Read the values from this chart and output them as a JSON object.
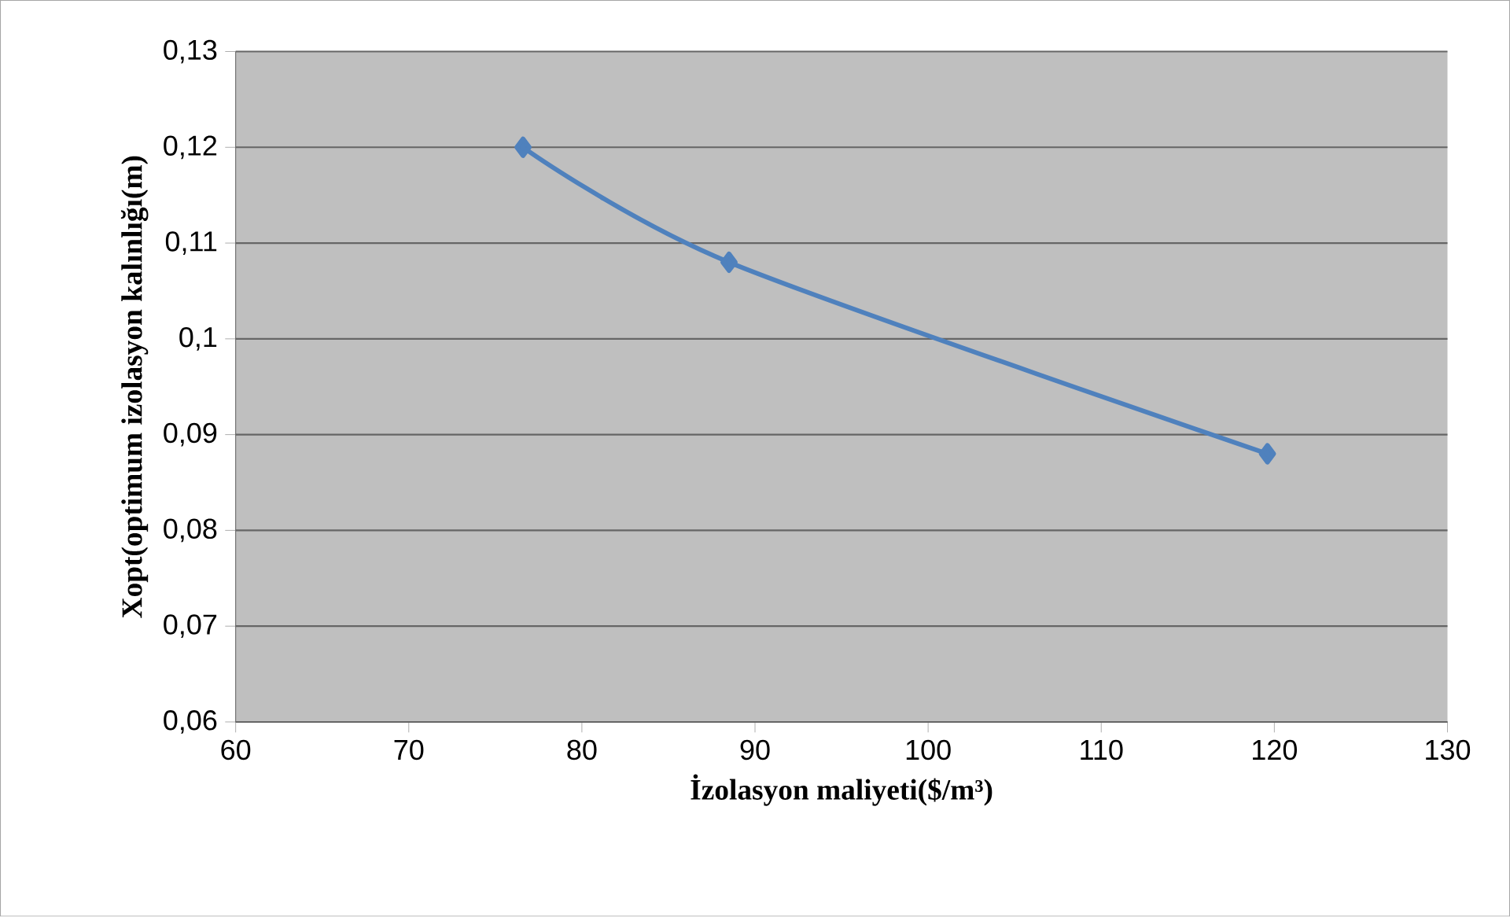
{
  "chart_data": {
    "type": "line",
    "xlabel": "İzolasyon maliyeti($/m³)",
    "ylabel": "Xopt(optimum izolasyon kalınlığı(m)",
    "series": [
      {
        "color": "#4f81bd",
        "x": [
          76.6,
          88.5,
          119.6
        ],
        "values": [
          0.12,
          0.108,
          0.088
        ]
      }
    ],
    "xlim": [
      60,
      130
    ],
    "xticks": [
      60,
      70,
      80,
      90,
      100,
      110,
      120,
      130
    ],
    "ylim": [
      0.06,
      0.13
    ],
    "yticks": [
      {
        "value": 0.06,
        "label": "0,06"
      },
      {
        "value": 0.07,
        "label": "0,07"
      },
      {
        "value": 0.08,
        "label": "0,08"
      },
      {
        "value": 0.09,
        "label": "0,09"
      },
      {
        "value": 0.1,
        "label": "0,1"
      },
      {
        "value": 0.11,
        "label": "0,11"
      },
      {
        "value": 0.12,
        "label": "0,12"
      },
      {
        "value": 0.13,
        "label": "0,13"
      }
    ],
    "grid": "y",
    "marker": "diamond",
    "line_style": "solid"
  }
}
